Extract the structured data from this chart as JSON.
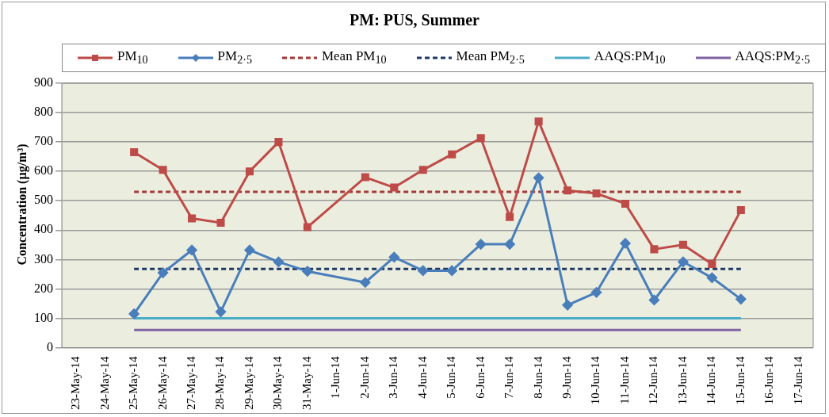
{
  "chart_data": {
    "type": "line",
    "title": "PM: PUS, Summer",
    "ylabel": "Concentration (µg/m³)",
    "categories": [
      "23-May-14",
      "24-May-14",
      "25-May-14",
      "26-May-14",
      "27-May-14",
      "28-May-14",
      "29-May-14",
      "30-May-14",
      "31-May-14",
      "1-Jun-14",
      "2-Jun-14",
      "3-Jun-14",
      "4-Jun-14",
      "5-Jun-14",
      "6-Jun-14",
      "7-Jun-14",
      "8-Jun-14",
      "9-Jun-14",
      "10-Jun-14",
      "11-Jun-14",
      "12-Jun-14",
      "13-Jun-14",
      "14-Jun-14",
      "15-Jun-14",
      "16-Jun-14",
      "17-Jun-14"
    ],
    "series": [
      {
        "name": "PM$_{10}$",
        "color": "#be4b48",
        "marker": "square",
        "values": [
          null,
          null,
          665,
          605,
          440,
          425,
          600,
          700,
          410,
          null,
          580,
          545,
          605,
          658,
          713,
          445,
          770,
          535,
          525,
          490,
          335,
          350,
          285,
          468,
          null,
          null
        ]
      },
      {
        "name": "PM$_{2·5}$",
        "color": "#4a7ebb",
        "marker": "diamond",
        "values": [
          null,
          null,
          115,
          255,
          332,
          122,
          332,
          292,
          260,
          null,
          222,
          308,
          262,
          262,
          352,
          352,
          578,
          145,
          188,
          355,
          162,
          292,
          238,
          165,
          null,
          null
        ]
      },
      {
        "name": "Mean PM$_{10}$",
        "color": "#a33b38",
        "marker": "none",
        "line_style": "dashed",
        "values": [
          null,
          null,
          530,
          530,
          530,
          530,
          530,
          530,
          530,
          530,
          530,
          530,
          530,
          530,
          530,
          530,
          530,
          530,
          530,
          530,
          530,
          530,
          530,
          530,
          null,
          null
        ]
      },
      {
        "name": "Mean PM$_{2·5}$",
        "color": "#1f3864",
        "marker": "none",
        "line_style": "dashed",
        "values": [
          null,
          null,
          268,
          268,
          268,
          268,
          268,
          268,
          268,
          268,
          268,
          268,
          268,
          268,
          268,
          268,
          268,
          268,
          268,
          268,
          268,
          268,
          268,
          268,
          null,
          null
        ]
      },
      {
        "name": "AAQS:PM$_{10}$",
        "color": "#4bacc6",
        "marker": "none",
        "values": [
          null,
          null,
          100,
          100,
          100,
          100,
          100,
          100,
          100,
          100,
          100,
          100,
          100,
          100,
          100,
          100,
          100,
          100,
          100,
          100,
          100,
          100,
          100,
          100,
          null,
          null
        ]
      },
      {
        "name": "AAQS:PM$_{2·5}$",
        "color": "#8064a2",
        "marker": "none",
        "values": [
          null,
          null,
          60,
          60,
          60,
          60,
          60,
          60,
          60,
          60,
          60,
          60,
          60,
          60,
          60,
          60,
          60,
          60,
          60,
          60,
          60,
          60,
          60,
          60,
          null,
          null
        ]
      }
    ],
    "ylim": [
      0,
      900
    ],
    "yticks": [
      0,
      100,
      200,
      300,
      400,
      500,
      600,
      700,
      800,
      900
    ],
    "grid": "y",
    "legend": "top",
    "line_style": "solid"
  }
}
